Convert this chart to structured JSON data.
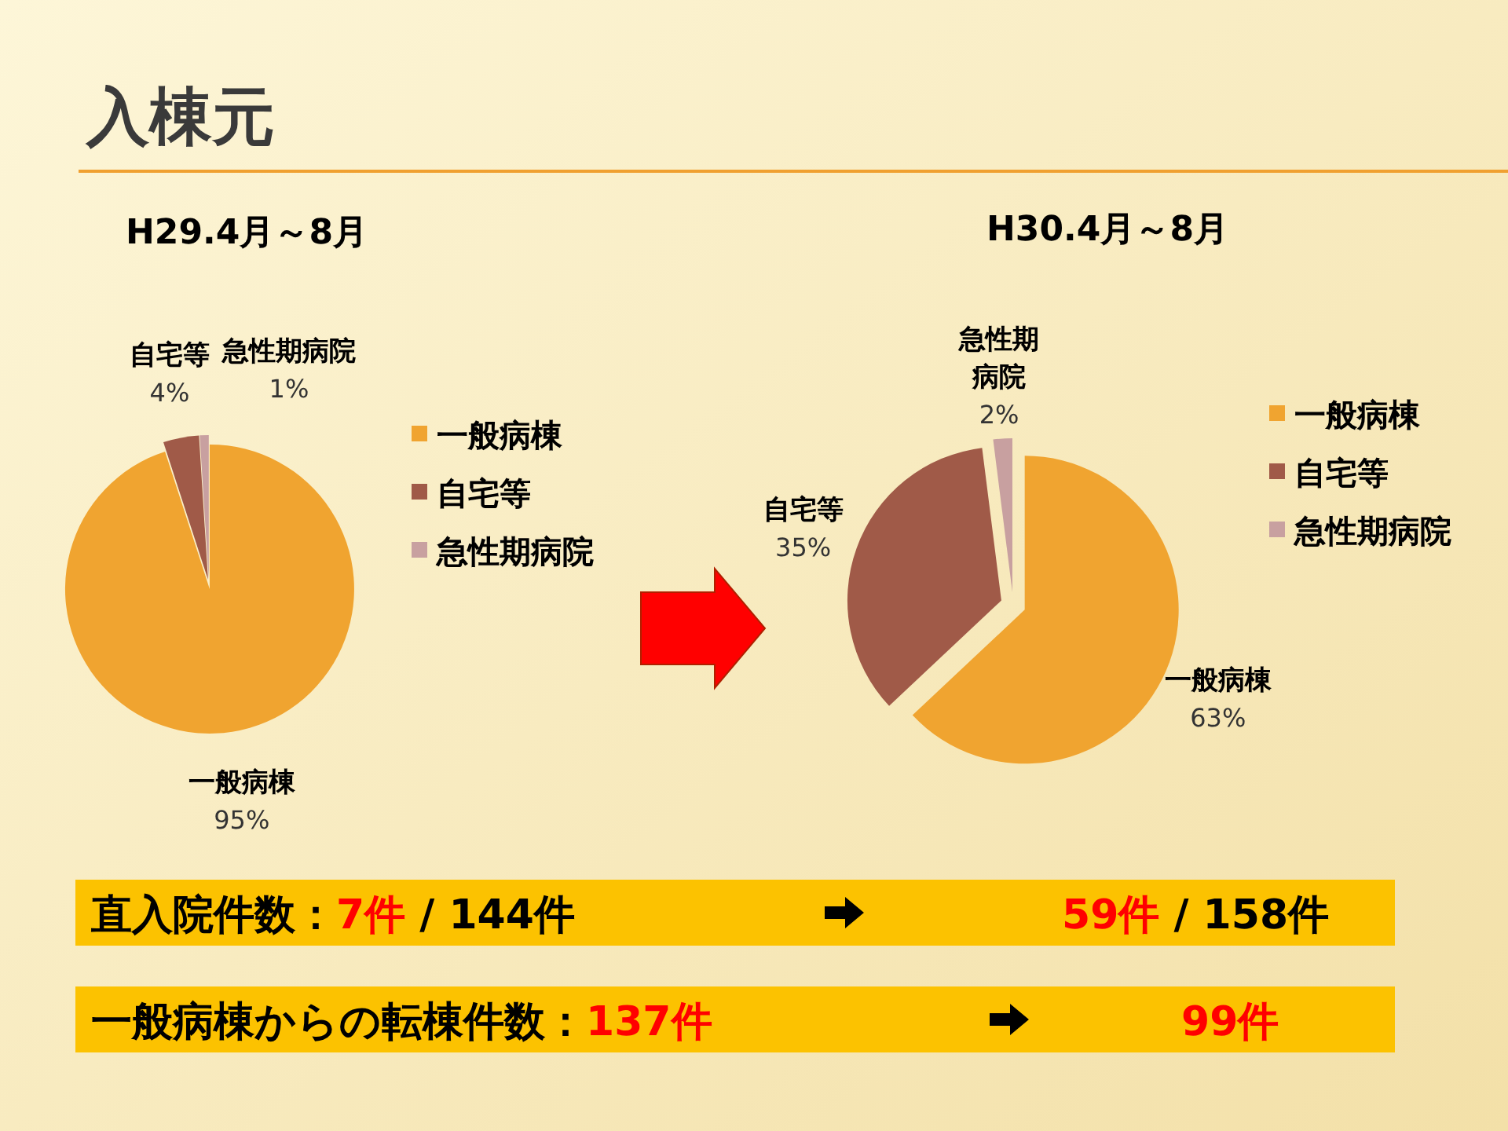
{
  "chart_data": [
    {
      "type": "other",
      "title": "入棟元",
      "annotations": [
        "直入院件数：7件 / 144件",
        "59件 / 158件",
        "一般病棟からの転棟件数：137件",
        "99件"
      ]
    },
    {
      "type": "pie",
      "title": "H29.4月～8月",
      "categories": [
        "一般病棟",
        "自宅等",
        "急性期病院"
      ],
      "values": [
        95,
        4,
        1
      ],
      "value_labels": [
        "95%",
        "4%",
        "1%"
      ],
      "colors": [
        "#f0a430",
        "#a05a48",
        "#c8a0a0"
      ],
      "legend": "right"
    },
    {
      "type": "pie",
      "title": "H30.4月～8月",
      "categories": [
        "一般病棟",
        "自宅等",
        "急性期病院"
      ],
      "values": [
        63,
        35,
        2
      ],
      "value_labels": [
        "63%",
        "35%",
        "2%"
      ],
      "colors": [
        "#f0a430",
        "#a05a48",
        "#c8a0a0"
      ],
      "legend": "right"
    }
  ]
}
